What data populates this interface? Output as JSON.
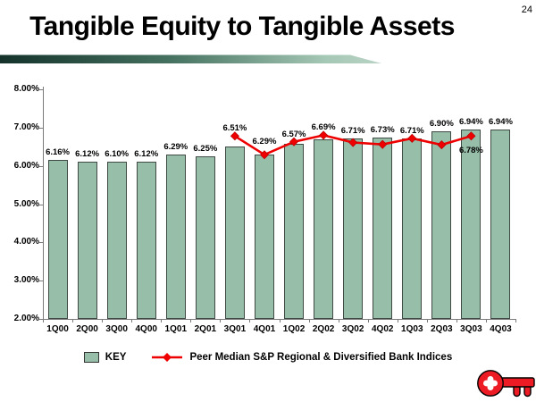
{
  "slide": {
    "title": "Tangible Equity to Tangible Assets",
    "page_number": "24"
  },
  "colors": {
    "bar_fill": "#97bea8",
    "bar_border": "#3f4a44",
    "line_red": "#ee0000",
    "accent_dark": "#14322a",
    "accent_mid": "#467261",
    "accent_light": "#a5c7b5",
    "logo_red": "#ed1b23"
  },
  "chart_data": {
    "type": "bar",
    "title": "Tangible Equity to Tangible Assets",
    "categories": [
      "1Q00",
      "2Q00",
      "3Q00",
      "4Q00",
      "1Q01",
      "2Q01",
      "3Q01",
      "4Q01",
      "1Q02",
      "2Q02",
      "3Q02",
      "4Q02",
      "1Q03",
      "2Q03",
      "3Q03",
      "4Q03"
    ],
    "y_axis": {
      "min": 2,
      "max": 8,
      "tick_step": 1,
      "tick_labels": [
        "8.00%",
        "7.00%",
        "6.00%",
        "5.00%",
        "4.00%",
        "3.00%",
        "2.00%"
      ]
    },
    "grid": false,
    "legend_position": "bottom",
    "series": [
      {
        "name": "KEY",
        "type": "bar",
        "values": [
          6.16,
          6.12,
          6.1,
          6.12,
          6.29,
          6.25,
          6.51,
          6.29,
          6.57,
          6.69,
          6.71,
          6.73,
          6.71,
          6.9,
          6.94,
          6.94
        ],
        "labels": [
          "6.16%",
          "6.12%",
          "6.10%",
          "6.12%",
          "6.29%",
          "6.25%",
          "6.51%",
          "6.29%",
          "6.57%",
          "6.69%",
          "6.71%",
          "6.73%",
          "6.71%",
          "6.90%",
          "6.94%",
          "6.94%"
        ]
      },
      {
        "name": "Peer Median S&P Regional & Diversified Bank Indices",
        "type": "line",
        "values": [
          null,
          null,
          null,
          null,
          null,
          null,
          6.78,
          6.29,
          6.63,
          6.8,
          6.61,
          6.56,
          6.72,
          6.55,
          6.78,
          null
        ],
        "point_label": {
          "category": "3Q03",
          "text": "6.78%"
        }
      }
    ]
  }
}
